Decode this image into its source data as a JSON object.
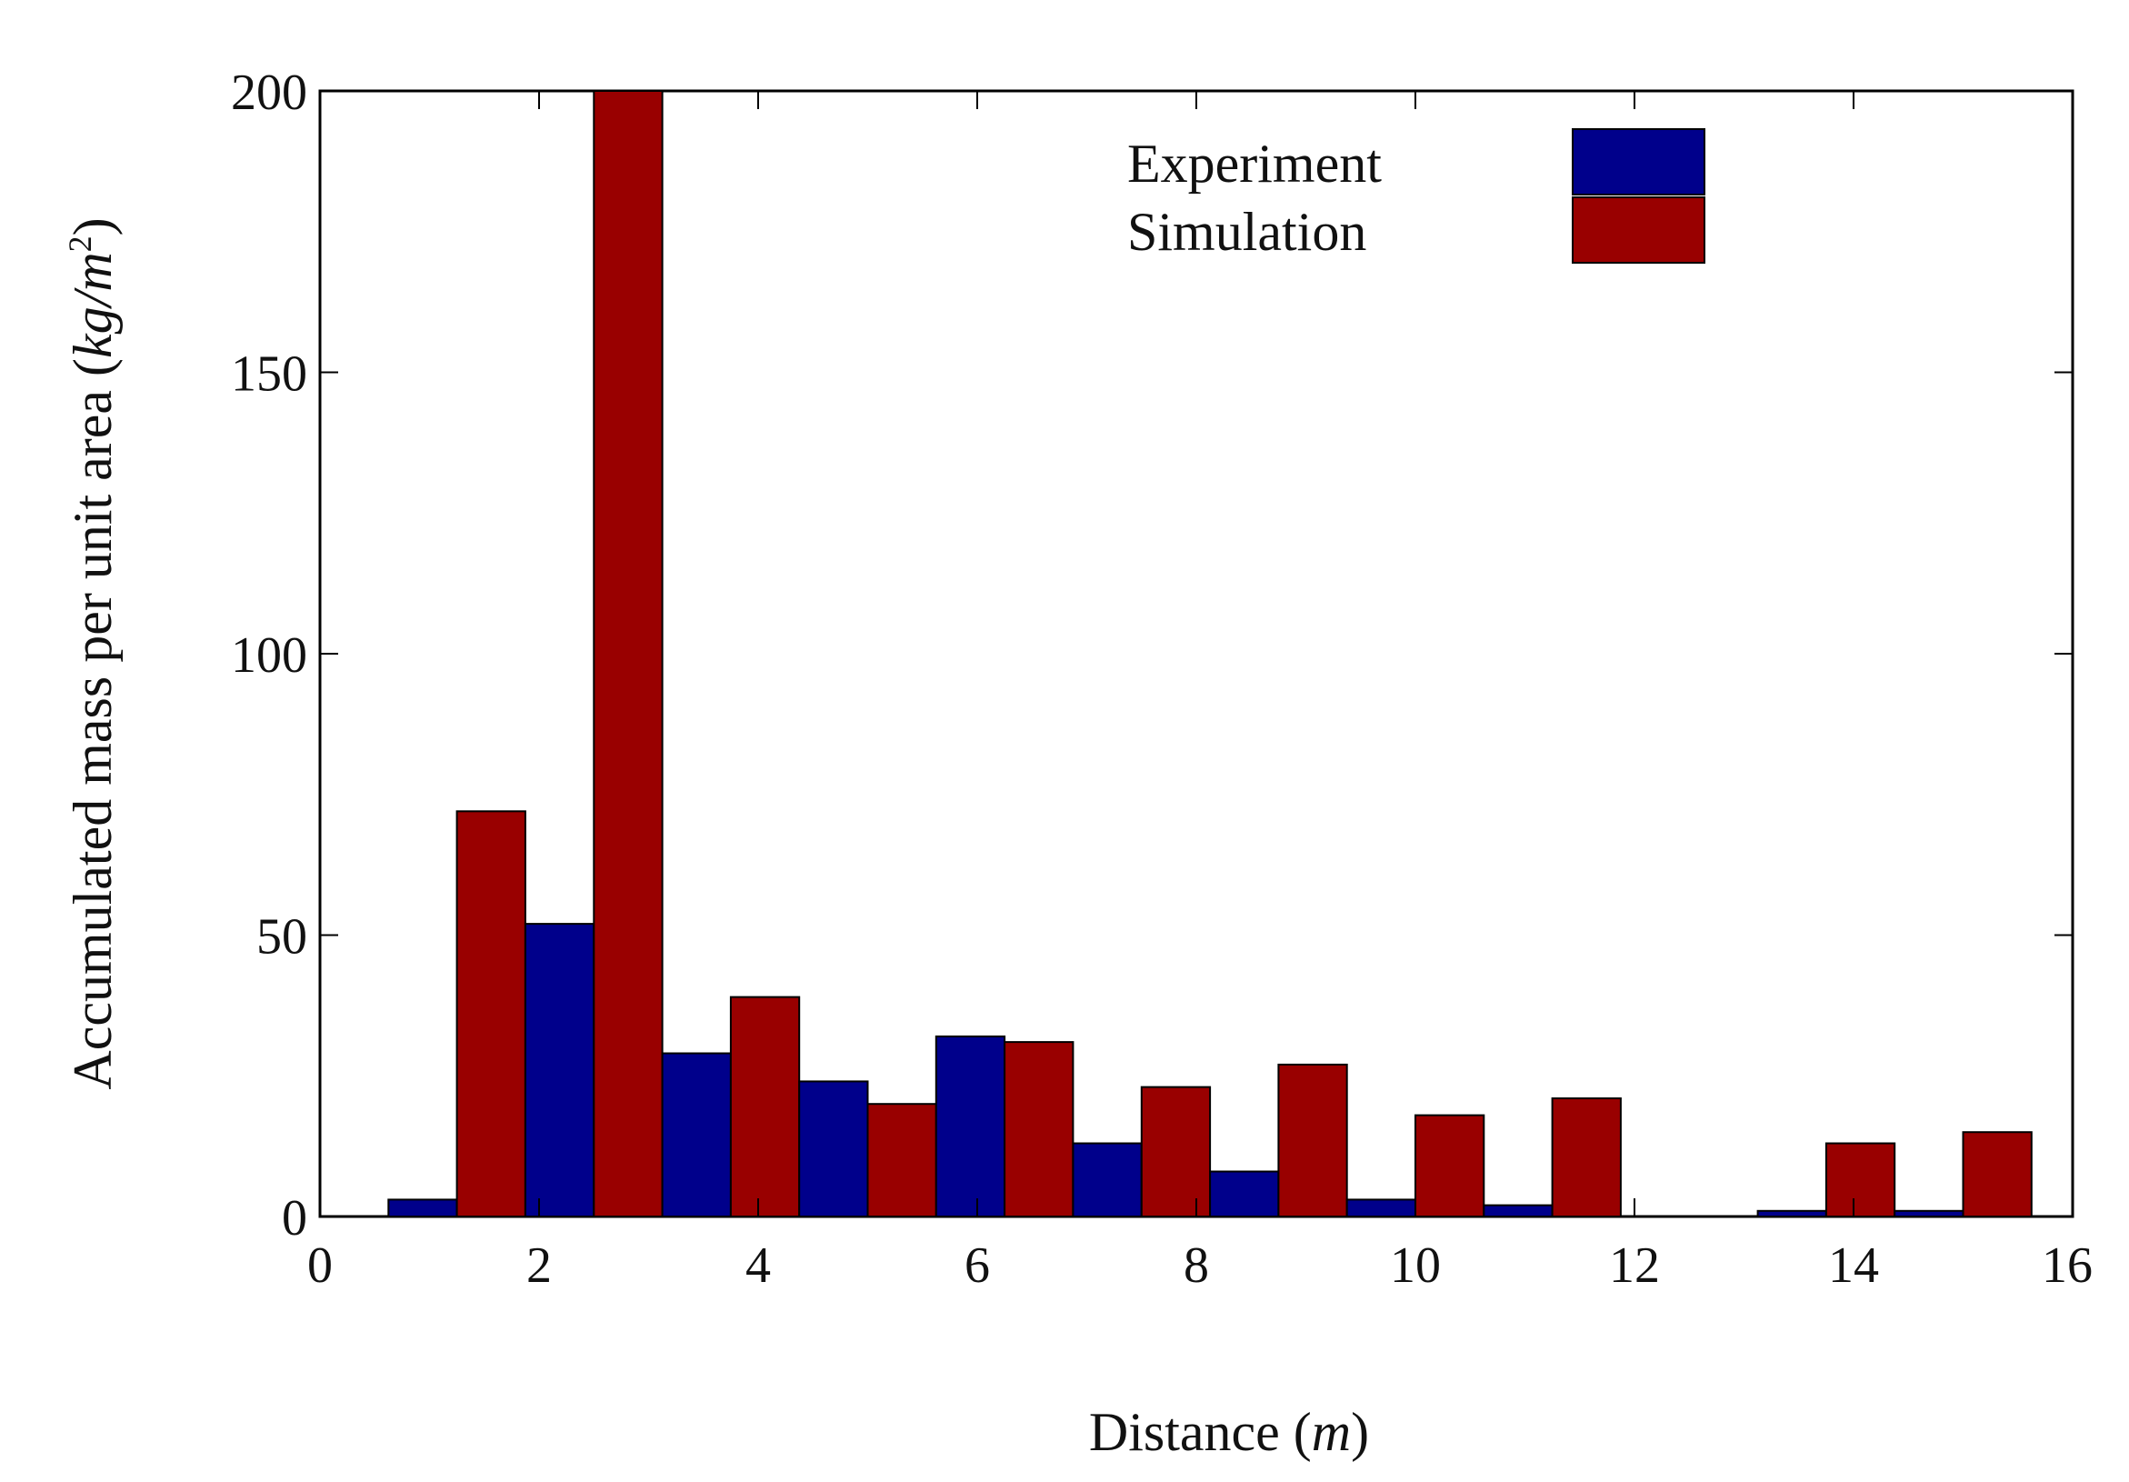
{
  "chart_data": {
    "type": "bar",
    "xlabel": "Distance (m)",
    "ylabel": "Accumulated mass per unit area (kg/m²)",
    "xlabel_parts": {
      "prefix": "Distance (",
      "unit": "m",
      "suffix": ")"
    },
    "ylabel_parts": {
      "prefix": "Accumulated mass per unit area (",
      "unit_base": "kg/m",
      "unit_exp": "2",
      "suffix": ")"
    },
    "xlim": [
      0,
      16
    ],
    "ylim": [
      0,
      200
    ],
    "xticks": [
      "0",
      "2",
      "4",
      "6",
      "8",
      "10",
      "12",
      "14",
      "16"
    ],
    "yticks": [
      "0",
      "50",
      "100",
      "150",
      "200"
    ],
    "bin_width": 1.25,
    "bin_centers": [
      1.25,
      2.5,
      3.75,
      5.0,
      6.25,
      7.5,
      8.75,
      10.0,
      11.25,
      12.5,
      13.75,
      15.0
    ],
    "legend_position": "top-right",
    "series": [
      {
        "name": "Experiment",
        "color": "#00008b",
        "values": [
          3,
          52,
          29,
          24,
          32,
          13,
          8,
          3,
          2,
          0,
          1,
          1
        ]
      },
      {
        "name": "Simulation",
        "color": "#990000",
        "values": [
          72,
          200,
          39,
          20,
          31,
          23,
          27,
          18,
          21,
          0,
          13,
          15
        ]
      }
    ]
  }
}
